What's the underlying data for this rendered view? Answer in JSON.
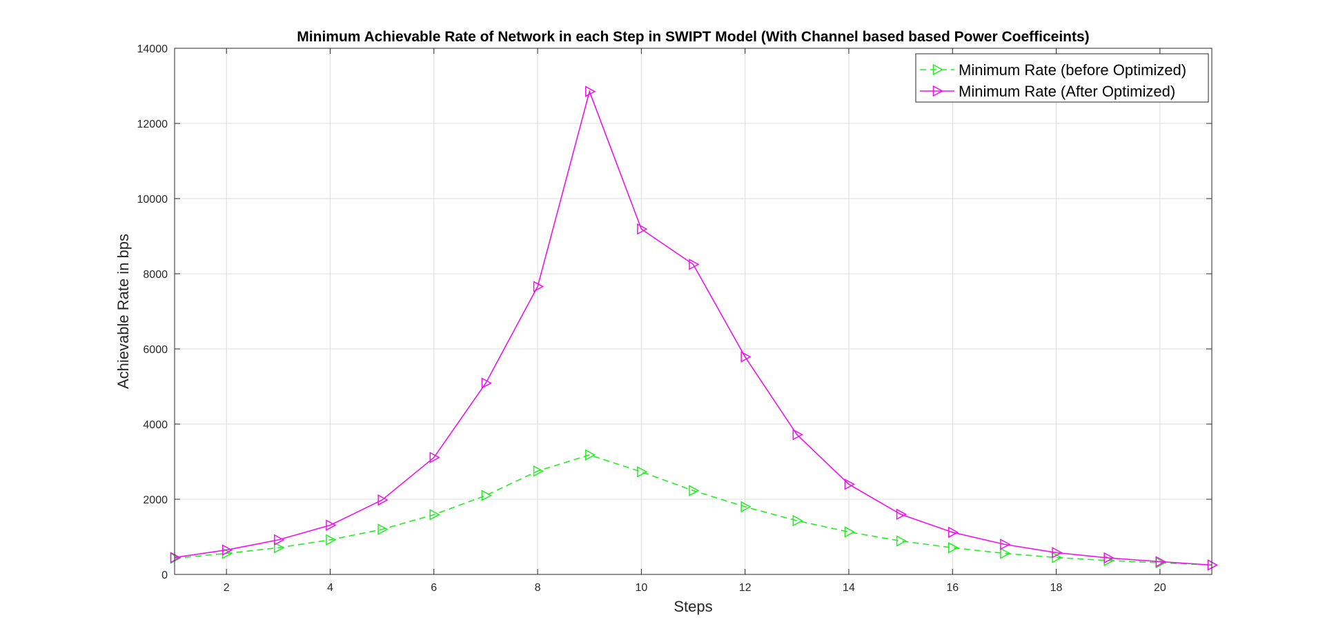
{
  "chart_data": {
    "type": "line",
    "title": "Minimum Achievable Rate of Network in each Step in SWIPT Model (With Channel based based Power Coefficeints)",
    "xlabel": "Steps",
    "ylabel": "Achievable Rate in bps",
    "xlim": [
      1,
      21
    ],
    "ylim": [
      0,
      14000
    ],
    "xticks": [
      2,
      4,
      6,
      8,
      10,
      12,
      14,
      16,
      18,
      20
    ],
    "yticks": [
      0,
      2000,
      4000,
      6000,
      8000,
      10000,
      12000,
      14000
    ],
    "grid": true,
    "legend_position": "top-right",
    "x": [
      1,
      2,
      3,
      4,
      5,
      6,
      7,
      8,
      9,
      10,
      11,
      12,
      13,
      14,
      15,
      16,
      17,
      18,
      19,
      20,
      21
    ],
    "series": [
      {
        "name": "Minimum Rate (before Optimized)",
        "color": "#22ee22",
        "line_style": "dashed",
        "marker": "triangle-right",
        "values": [
          430,
          560,
          710,
          920,
          1200,
          1590,
          2100,
          2750,
          3180,
          2730,
          2230,
          1800,
          1430,
          1130,
          890,
          710,
          560,
          450,
          370,
          310,
          250
        ]
      },
      {
        "name": "Minimum Rate (After Optimized)",
        "color": "#ee11ee",
        "line_style": "solid",
        "marker": "triangle-right",
        "values": [
          450,
          650,
          920,
          1310,
          1980,
          3110,
          5090,
          7660,
          12850,
          9190,
          8250,
          5790,
          3720,
          2400,
          1600,
          1120,
          800,
          580,
          440,
          340,
          250
        ]
      }
    ]
  }
}
